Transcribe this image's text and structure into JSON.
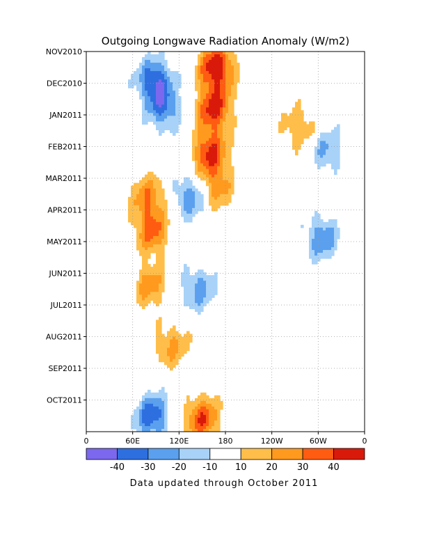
{
  "chart_data": {
    "type": "heatmap",
    "title": "Outgoing Longwave Radiation Anomaly (W/m2)",
    "footer": "Data updated through October 2011",
    "xlabel": "",
    "ylabel": "",
    "x_ticks": [
      "0",
      "60E",
      "120E",
      "180",
      "120W",
      "60W",
      "0"
    ],
    "y_ticks": [
      "NOV2010",
      "DEC2010",
      "JAN2011",
      "FEB2011",
      "MAR2011",
      "APR2011",
      "MAY2011",
      "JUN2011",
      "JUL2011",
      "AUG2011",
      "SEP2011",
      "OCT2011"
    ],
    "grid": true,
    "colorbar": {
      "levels": [
        "-40",
        "-30",
        "-20",
        "-10",
        "10",
        "20",
        "30",
        "40"
      ],
      "colors": [
        "#7b68ee",
        "#2e6fe0",
        "#5aa0ee",
        "#a8d2f8",
        "#ffffff",
        "#ffbe4a",
        "#ff9a1e",
        "#ff5c12",
        "#d91a0a"
      ]
    },
    "anomaly_features": [
      {
        "lon": 168,
        "time": 0.5,
        "value": 50
      },
      {
        "lon": 165,
        "time": 1.8,
        "value": 45
      },
      {
        "lon": 160,
        "time": 3.2,
        "value": 42
      },
      {
        "lon": 168,
        "time": 4.3,
        "value": 25
      },
      {
        "lon": 150,
        "time": 11.6,
        "value": 38
      },
      {
        "lon": 88,
        "time": 0.9,
        "value": -38
      },
      {
        "lon": 100,
        "time": 1.8,
        "value": -30
      },
      {
        "lon": 135,
        "time": 4.6,
        "value": -28
      },
      {
        "lon": 145,
        "time": 7.5,
        "value": -25
      },
      {
        "lon": 85,
        "time": 11.5,
        "value": -38
      },
      {
        "lon": 305,
        "time": 5.9,
        "value": -28
      },
      {
        "lon": 312,
        "time": 3.1,
        "value": -22
      },
      {
        "lon": 85,
        "time": 5.7,
        "value": 32
      },
      {
        "lon": 80,
        "time": 4.6,
        "value": 28
      },
      {
        "lon": 82,
        "time": 7.4,
        "value": 25
      },
      {
        "lon": 110,
        "time": 9.3,
        "value": 22
      },
      {
        "lon": 275,
        "time": 2.4,
        "value": 20
      }
    ]
  }
}
